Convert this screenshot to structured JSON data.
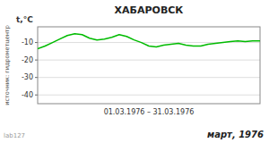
{
  "chart_data": {
    "type": "line",
    "title": "ХАБАРОВСК",
    "ylabel": "t,°C",
    "xlabel": "01.03.1976 – 31.03.1976",
    "annotations": [
      "март, 1976",
      "lab127",
      "источник: гидрометцентр"
    ],
    "x": [
      1,
      2,
      3,
      4,
      5,
      6,
      7,
      8,
      9,
      10,
      11,
      12,
      13,
      14,
      15,
      16,
      17,
      18,
      19,
      20,
      21,
      22,
      23,
      24,
      25,
      26,
      27,
      28,
      29,
      30,
      31
    ],
    "values": [
      -13.5,
      -12.0,
      -10.0,
      -8.0,
      -6.0,
      -5.0,
      -5.5,
      -7.5,
      -8.5,
      -8.0,
      -7.0,
      -5.5,
      -6.5,
      -8.5,
      -10.0,
      -12.0,
      -12.5,
      -11.5,
      -11.0,
      -10.5,
      -11.5,
      -12.0,
      -12.0,
      -11.0,
      -10.5,
      -10.0,
      -9.5,
      -9.0,
      -9.5,
      -9.0,
      -9.0
    ],
    "color": "#00bb00",
    "xlim": [
      1,
      31
    ],
    "ylim": [
      -45,
      -1
    ],
    "yticks": [
      -40,
      -30,
      -20,
      -10
    ],
    "grid": true,
    "tick_labels": "y"
  }
}
